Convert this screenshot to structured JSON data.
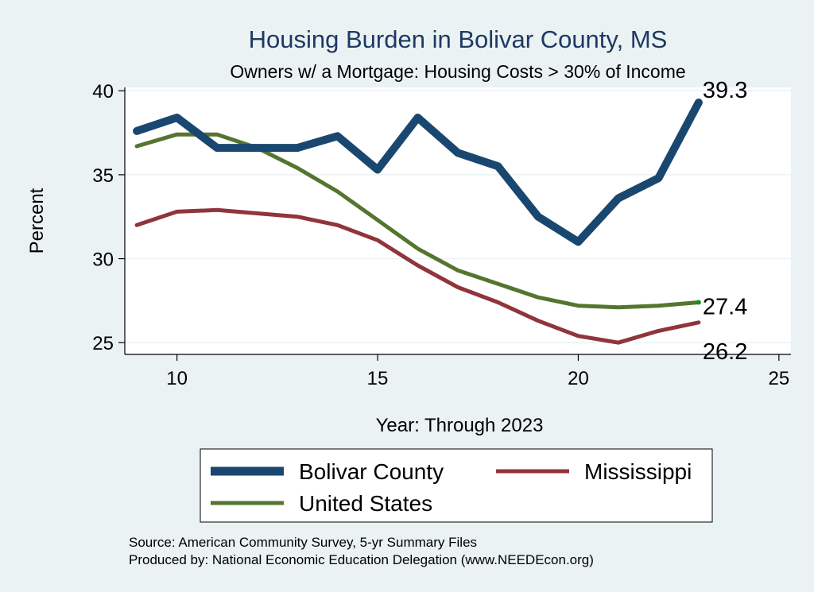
{
  "colors": {
    "background": "#eaf2f3",
    "plot_background": "#ffffff",
    "grid": "#eaf2f3",
    "title": "#1f3864"
  },
  "chart_data": {
    "type": "line",
    "title": "Housing Burden in Bolivar County, MS",
    "subtitle": "Owners w/ a Mortgage: Housing Costs > 30% of Income",
    "xlabel": "Year: Through 2023",
    "ylabel": "Percent",
    "xlim": [
      8.7,
      25.3
    ],
    "ylim": [
      24.3,
      40.2
    ],
    "xticks": [
      10,
      15,
      20,
      25
    ],
    "yticks": [
      25,
      30,
      35,
      40
    ],
    "grid": true,
    "legend_position": "bottom",
    "x": [
      9,
      10,
      11,
      12,
      13,
      14,
      15,
      16,
      17,
      18,
      19,
      20,
      21,
      22,
      23
    ],
    "series": [
      {
        "name": "Bolivar County",
        "color": "#1a476f",
        "width": "thick",
        "values": [
          37.6,
          38.4,
          36.6,
          36.6,
          36.6,
          37.3,
          35.3,
          38.4,
          36.3,
          35.5,
          32.5,
          31.0,
          33.6,
          34.8,
          39.3
        ],
        "end_label": "39.3"
      },
      {
        "name": "Mississippi",
        "color": "#90353b",
        "width": "medium",
        "values": [
          32.0,
          32.8,
          32.9,
          32.7,
          32.5,
          32.0,
          31.1,
          29.6,
          28.3,
          27.4,
          26.3,
          25.4,
          25.0,
          25.7,
          26.2
        ],
        "end_label": "26.2"
      },
      {
        "name": "United States",
        "color": "#55752f",
        "width": "medium",
        "values": [
          36.7,
          37.4,
          37.4,
          36.6,
          35.4,
          34.0,
          32.3,
          30.6,
          29.3,
          28.5,
          27.7,
          27.2,
          27.1,
          27.2,
          27.4
        ],
        "end_label": "27.4"
      }
    ],
    "legend": [
      "Bolivar County",
      "Mississippi",
      "United States"
    ],
    "notes": [
      "Source: American Community Survey, 5-yr Summary Files",
      "Produced by: National Economic Education Delegation (www.NEEDEcon.org)"
    ]
  }
}
